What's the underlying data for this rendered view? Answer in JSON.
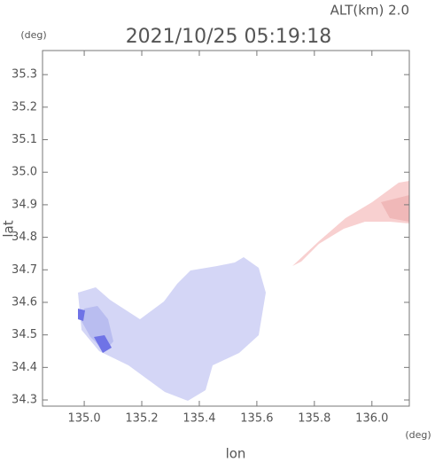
{
  "chart_data": {
    "type": "map",
    "title": "2021/10/25 05:19:18",
    "altitude_label": "ALT(km) 2.0",
    "y_unit": "(deg)",
    "x_unit": "(deg)",
    "ylabel": "lat",
    "xlabel": "lon",
    "xlim": [
      134.855,
      136.13
    ],
    "ylim": [
      34.281,
      35.374
    ],
    "xticks": [
      {
        "value": 135,
        "label": "135.0"
      },
      135.2,
      135.4,
      135.6,
      135.8,
      {
        "value": 136,
        "label": "136.0"
      }
    ],
    "yticks": [
      34.3,
      34.4,
      34.5,
      34.6,
      34.7,
      34.8,
      34.9,
      {
        "value": 35,
        "label": "35.0"
      },
      35.1,
      35.2,
      35.3
    ]
  }
}
